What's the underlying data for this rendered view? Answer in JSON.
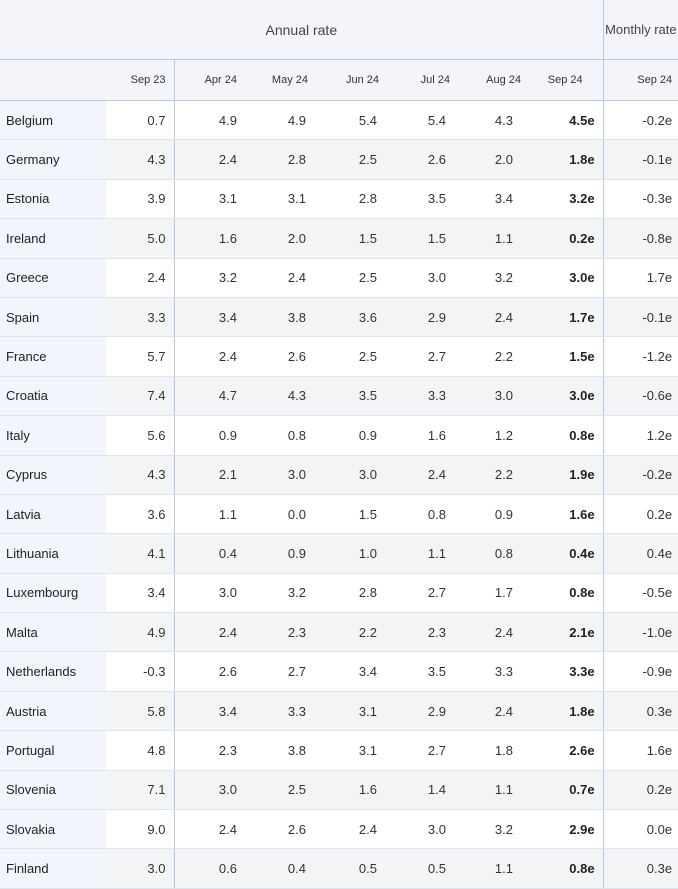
{
  "header": {
    "annual_label": "Annual rate",
    "monthly_label": "Monthly rate",
    "columns": [
      "Sep 23",
      "Apr 24",
      "May 24",
      "Jun 24",
      "Jul 24",
      "Aug 24",
      "Sep 24",
      "Sep 24"
    ]
  },
  "rows": [
    {
      "country": "Belgium",
      "v": [
        "0.7",
        "4.9",
        "4.9",
        "5.4",
        "5.4",
        "4.3",
        "4.5e",
        "-0.2e"
      ]
    },
    {
      "country": "Germany",
      "v": [
        "4.3",
        "2.4",
        "2.8",
        "2.5",
        "2.6",
        "2.0",
        "1.8e",
        "-0.1e"
      ]
    },
    {
      "country": "Estonia",
      "v": [
        "3.9",
        "3.1",
        "3.1",
        "2.8",
        "3.5",
        "3.4",
        "3.2e",
        "-0.3e"
      ]
    },
    {
      "country": "Ireland",
      "v": [
        "5.0",
        "1.6",
        "2.0",
        "1.5",
        "1.5",
        "1.1",
        "0.2e",
        "-0.8e"
      ]
    },
    {
      "country": "Greece",
      "v": [
        "2.4",
        "3.2",
        "2.4",
        "2.5",
        "3.0",
        "3.2",
        "3.0e",
        "1.7e"
      ]
    },
    {
      "country": "Spain",
      "v": [
        "3.3",
        "3.4",
        "3.8",
        "3.6",
        "2.9",
        "2.4",
        "1.7e",
        "-0.1e"
      ]
    },
    {
      "country": "France",
      "v": [
        "5.7",
        "2.4",
        "2.6",
        "2.5",
        "2.7",
        "2.2",
        "1.5e",
        "-1.2e"
      ]
    },
    {
      "country": "Croatia",
      "v": [
        "7.4",
        "4.7",
        "4.3",
        "3.5",
        "3.3",
        "3.0",
        "3.0e",
        "-0.6e"
      ]
    },
    {
      "country": "Italy",
      "v": [
        "5.6",
        "0.9",
        "0.8",
        "0.9",
        "1.6",
        "1.2",
        "0.8e",
        "1.2e"
      ]
    },
    {
      "country": "Cyprus",
      "v": [
        "4.3",
        "2.1",
        "3.0",
        "3.0",
        "2.4",
        "2.2",
        "1.9e",
        "-0.2e"
      ]
    },
    {
      "country": "Latvia",
      "v": [
        "3.6",
        "1.1",
        "0.0",
        "1.5",
        "0.8",
        "0.9",
        "1.6e",
        "0.2e"
      ]
    },
    {
      "country": "Lithuania",
      "v": [
        "4.1",
        "0.4",
        "0.9",
        "1.0",
        "1.1",
        "0.8",
        "0.4e",
        "0.4e"
      ]
    },
    {
      "country": "Luxembourg",
      "v": [
        "3.4",
        "3.0",
        "3.2",
        "2.8",
        "2.7",
        "1.7",
        "0.8e",
        "-0.5e"
      ]
    },
    {
      "country": "Malta",
      "v": [
        "4.9",
        "2.4",
        "2.3",
        "2.2",
        "2.3",
        "2.4",
        "2.1e",
        "-1.0e"
      ]
    },
    {
      "country": "Netherlands",
      "v": [
        "-0.3",
        "2.6",
        "2.7",
        "3.4",
        "3.5",
        "3.3",
        "3.3e",
        "-0.9e"
      ]
    },
    {
      "country": "Austria",
      "v": [
        "5.8",
        "3.4",
        "3.3",
        "3.1",
        "2.9",
        "2.4",
        "1.8e",
        "0.3e"
      ]
    },
    {
      "country": "Portugal",
      "v": [
        "4.8",
        "2.3",
        "3.8",
        "3.1",
        "2.7",
        "1.8",
        "2.6e",
        "1.6e"
      ]
    },
    {
      "country": "Slovenia",
      "v": [
        "7.1",
        "3.0",
        "2.5",
        "1.6",
        "1.4",
        "1.1",
        "0.7e",
        "0.2e"
      ]
    },
    {
      "country": "Slovakia",
      "v": [
        "9.0",
        "2.4",
        "2.6",
        "2.4",
        "3.0",
        "3.2",
        "2.9e",
        "0.0e"
      ]
    },
    {
      "country": "Finland",
      "v": [
        "3.0",
        "0.6",
        "0.4",
        "0.5",
        "0.5",
        "1.1",
        "0.8e",
        "0.3e"
      ]
    }
  ]
}
